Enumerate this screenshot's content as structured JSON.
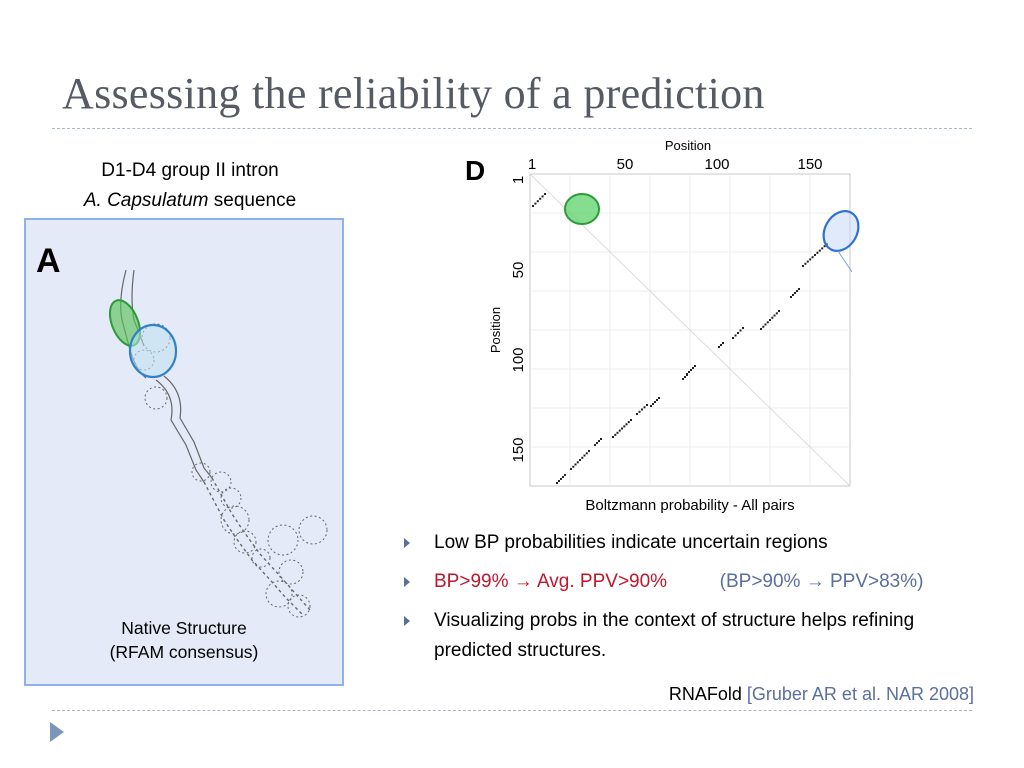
{
  "slide": {
    "title": "Assessing the reliability of a prediction"
  },
  "panel_a": {
    "caption_line1": "D1-D4 group II intron",
    "caption_italic": "A. Capsulatum",
    "caption_rest": " sequence",
    "letter": "A",
    "label_line1": "Native Structure",
    "label_line2": "(RFAM consensus)",
    "bg_color": "#e4eaf7",
    "border_color": "#8fb0e8"
  },
  "panel_d": {
    "letter": "D",
    "top_axis_title": "Position",
    "left_axis_title": "Position",
    "bottom_title": "Boltzmann probability - All pairs",
    "top_ticks": [
      "1",
      "50",
      "100",
      "150"
    ],
    "left_ticks": [
      "1",
      "50",
      "100",
      "150"
    ]
  },
  "bullets": [
    {
      "parts": [
        {
          "text": "Low BP probabilities indicate uncertain regions",
          "style": "plain"
        }
      ]
    },
    {
      "parts": [
        {
          "text": "BP>99% → Avg. PPV>90%",
          "style": "red"
        },
        {
          "text": "(BP>90% → PPV>83%)",
          "style": "slate"
        }
      ]
    },
    {
      "parts": [
        {
          "text": "Visualizing probs in the context of structure helps refining predicted structures.",
          "style": "plain"
        }
      ]
    }
  ],
  "citation": {
    "tool": "RNAFold",
    "ref": "[Gruber AR et al. NAR 2008]"
  },
  "colors": {
    "title": "#555a63",
    "red": "#c0162b",
    "slate": "#5b6f9e",
    "green_highlight": "#3cb54a",
    "blue_highlight": "#2f6fd6"
  }
}
